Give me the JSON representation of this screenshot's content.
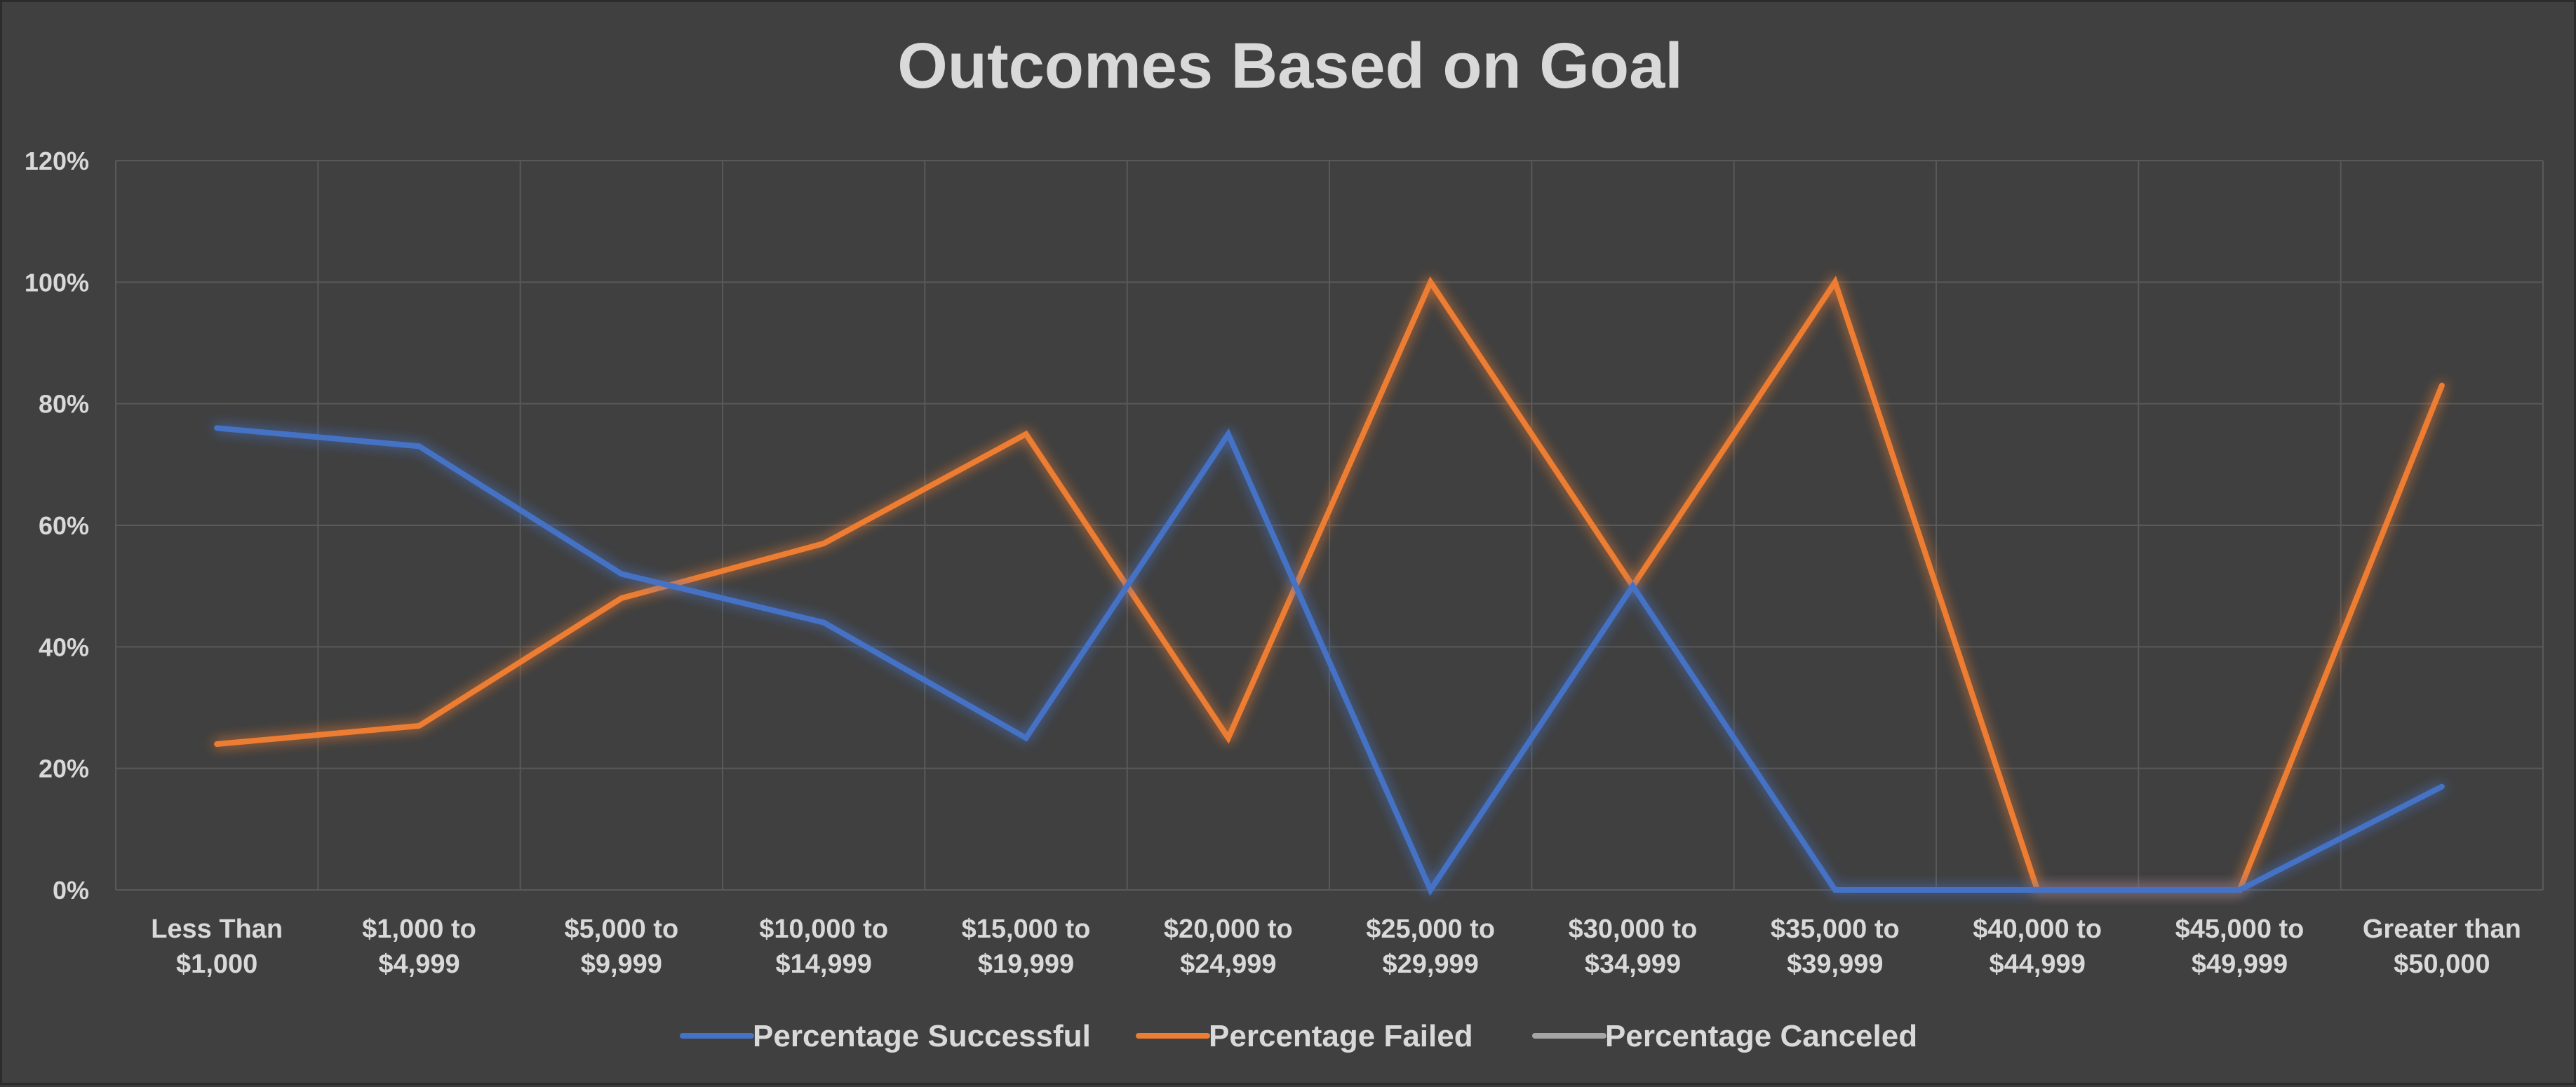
{
  "chart_data": {
    "type": "line",
    "title": "Outcomes Based on Goal",
    "xlabel": "",
    "ylabel": "",
    "categories": [
      [
        "Less Than",
        "$1,000"
      ],
      [
        "$1,000 to",
        "$4,999"
      ],
      [
        "$5,000 to",
        "$9,999"
      ],
      [
        "$10,000 to",
        "$14,999"
      ],
      [
        "$15,000 to",
        "$19,999"
      ],
      [
        "$20,000 to",
        "$24,999"
      ],
      [
        "$25,000 to",
        "$29,999"
      ],
      [
        "$30,000 to",
        "$34,999"
      ],
      [
        "$35,000 to",
        "$39,999"
      ],
      [
        "$40,000 to",
        "$44,999"
      ],
      [
        "$45,000 to",
        "$49,999"
      ],
      [
        "Greater than",
        "$50,000"
      ]
    ],
    "ylim": [
      0,
      1.2
    ],
    "yticks": [
      0,
      0.2,
      0.4,
      0.6,
      0.8,
      1.0,
      1.2
    ],
    "ytick_labels": [
      "0%",
      "20%",
      "40%",
      "60%",
      "80%",
      "100%",
      "120%"
    ],
    "grid": true,
    "legend_position": "bottom",
    "series": [
      {
        "name": "Percentage Successful",
        "color": "#4472c4",
        "values": [
          0.76,
          0.73,
          0.52,
          0.44,
          0.25,
          0.75,
          0.0,
          0.5,
          0.0,
          0.0,
          0.0,
          0.17
        ]
      },
      {
        "name": "Percentage Failed",
        "color": "#ed7d31",
        "values": [
          0.24,
          0.27,
          0.48,
          0.57,
          0.75,
          0.25,
          1.0,
          0.5,
          1.0,
          0.0,
          0.0,
          0.83
        ]
      },
      {
        "name": "Percentage Canceled",
        "color": "#a5a5a5",
        "values": [
          0,
          0,
          0,
          0,
          0,
          0,
          0,
          0,
          0,
          0,
          0,
          0
        ]
      }
    ]
  }
}
